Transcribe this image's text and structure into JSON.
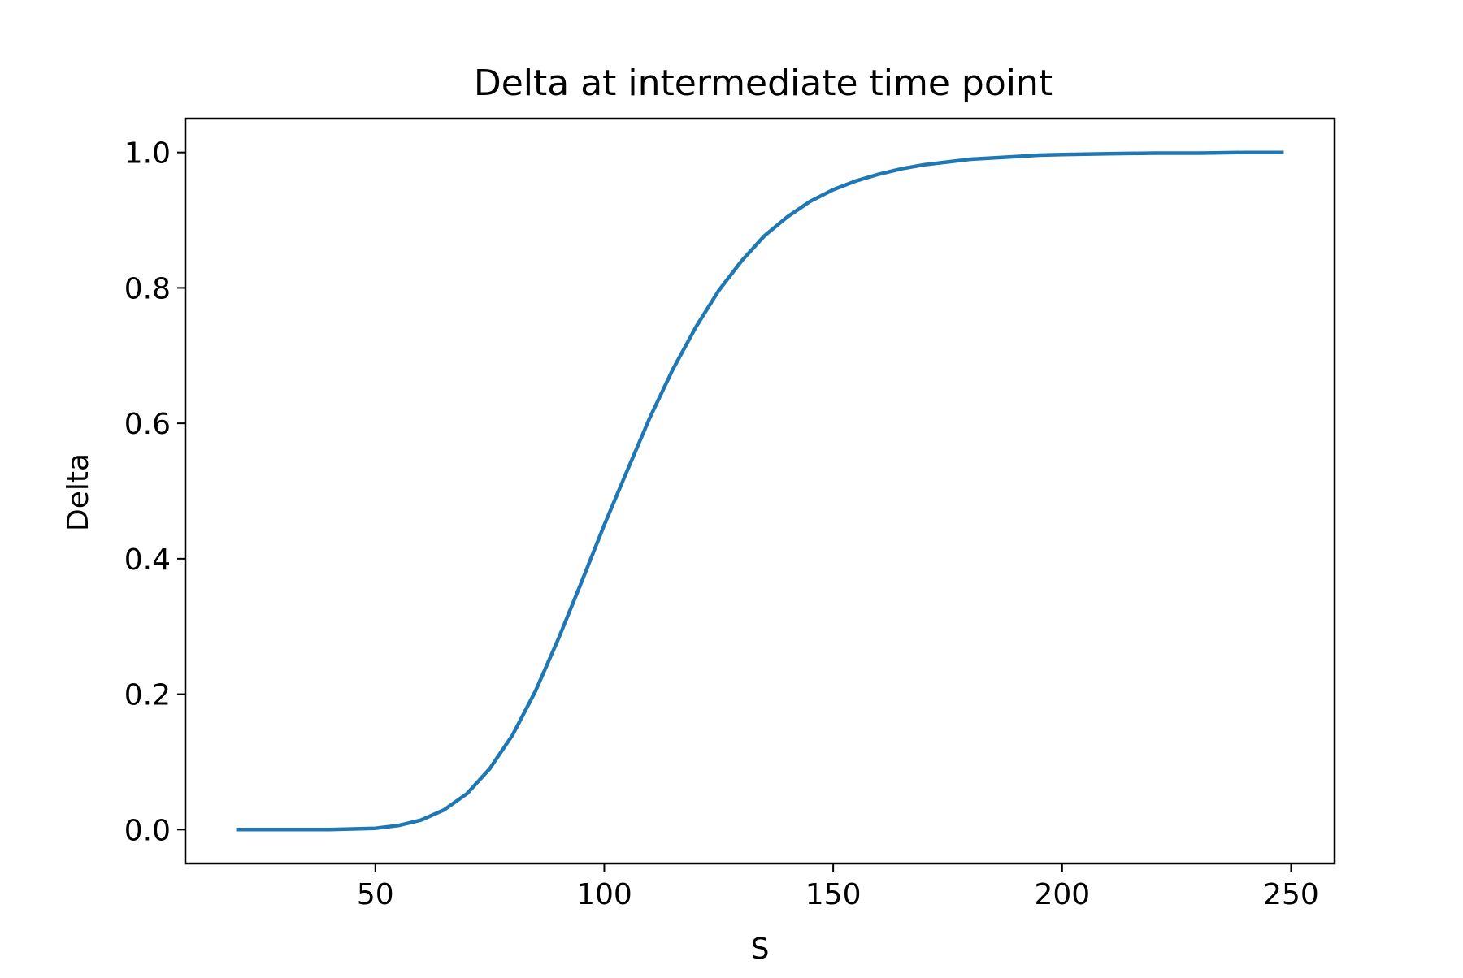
{
  "chart_data": {
    "type": "line",
    "title": "Delta at intermediate time point",
    "xlabel": "S",
    "ylabel": "Delta",
    "xlim": [
      8.5,
      259.5
    ],
    "ylim": [
      -0.05,
      1.05
    ],
    "xticks": [
      50,
      100,
      150,
      200,
      250
    ],
    "xtick_labels": [
      "50",
      "100",
      "150",
      "200",
      "250"
    ],
    "yticks": [
      0.0,
      0.2,
      0.4,
      0.6,
      0.8,
      1.0
    ],
    "ytick_labels": [
      "0.0",
      "0.2",
      "0.4",
      "0.6",
      "0.8",
      "1.0"
    ],
    "grid": false,
    "legend": "none",
    "series": [
      {
        "color": "#1f77b4",
        "x": [
          20,
          25,
          30,
          35,
          40,
          45,
          50,
          55,
          60,
          65,
          70,
          75,
          80,
          85,
          90,
          95,
          100,
          105,
          110,
          115,
          120,
          125,
          130,
          135,
          140,
          145,
          150,
          155,
          160,
          165,
          170,
          175,
          180,
          185,
          190,
          195,
          200,
          210,
          220,
          230,
          240,
          248
        ],
        "y": [
          0.0,
          0.0,
          0.0,
          0.0,
          0.0,
          0.001,
          0.002,
          0.006,
          0.014,
          0.029,
          0.053,
          0.09,
          0.14,
          0.205,
          0.282,
          0.365,
          0.45,
          0.53,
          0.609,
          0.68,
          0.742,
          0.796,
          0.84,
          0.877,
          0.905,
          0.928,
          0.945,
          0.958,
          0.968,
          0.976,
          0.982,
          0.986,
          0.99,
          0.992,
          0.994,
          0.996,
          0.997,
          0.998,
          0.999,
          0.999,
          1.0,
          1.0
        ]
      }
    ]
  }
}
